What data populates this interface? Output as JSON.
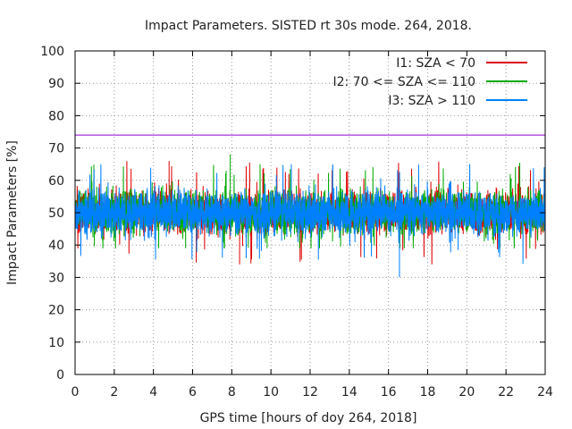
{
  "chart_data": {
    "type": "line",
    "title": "Impact Parameters. SISTED rt 30s mode. 264, 2018.",
    "xlabel": "GPS time [hours of doy 264, 2018]",
    "ylabel": "Impact Parameters [%]",
    "xlim": [
      0,
      24
    ],
    "ylim": [
      0,
      100
    ],
    "xticks": [
      0,
      2,
      4,
      6,
      8,
      10,
      12,
      14,
      16,
      18,
      20,
      22,
      24
    ],
    "yticks": [
      0,
      10,
      20,
      30,
      40,
      50,
      60,
      70,
      80,
      90,
      100
    ],
    "grid": true,
    "legend_position": "top-right",
    "reference_line": {
      "y": 74,
      "color": "#9400d3"
    },
    "series": [
      {
        "name": "I1: SZA < 70",
        "color": "#dd0000",
        "mean": 50,
        "min": 34,
        "max": 66
      },
      {
        "name": "I2: 70 <= SZA <= 110",
        "color": "#00aa00",
        "mean": 50,
        "min": 39,
        "max": 68
      },
      {
        "name": "I3: SZA > 110",
        "color": "#0080ff",
        "mean": 50,
        "min": 30,
        "max": 65
      }
    ]
  }
}
